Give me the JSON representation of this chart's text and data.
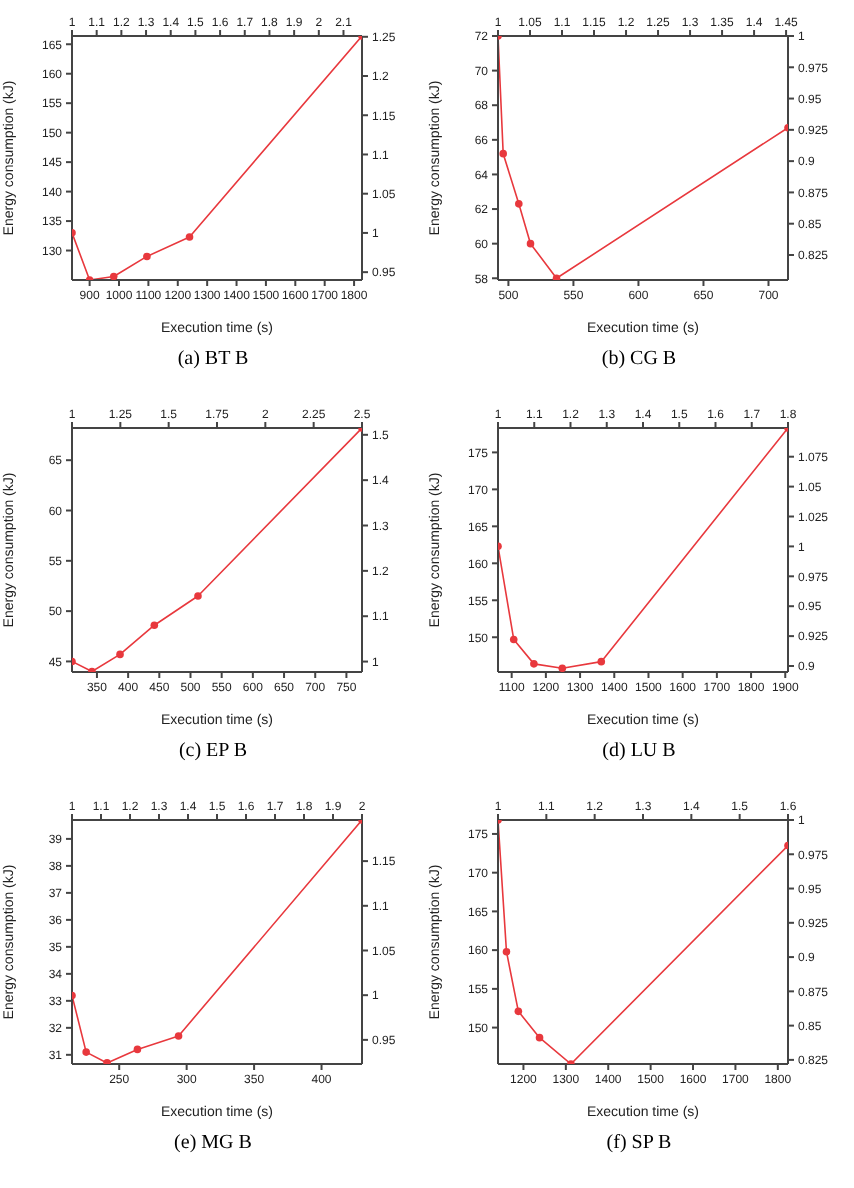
{
  "chart_data": [
    {
      "type": "line",
      "title": "(a) BT B",
      "xlabel": "Execution time (s)",
      "ylabel": "Energy consumption (kJ)",
      "marker": "circle",
      "x": [
        840,
        900,
        982,
        1095,
        1240,
        1827
      ],
      "series": [
        {
          "color": "#e8383d",
          "values": [
            133,
            125,
            125.6,
            129,
            132.3,
            166.4
          ]
        }
      ],
      "xlim": [
        840,
        1827
      ],
      "xticks": [
        900,
        1000,
        1100,
        1200,
        1300,
        1400,
        1500,
        1600,
        1700,
        1800
      ],
      "ylim": [
        125,
        166.4
      ],
      "yticks": [
        130,
        135,
        140,
        145,
        150,
        155,
        160,
        165
      ],
      "x2lim": [
        1,
        2.175
      ],
      "x2ticks": [
        1,
        1.1,
        1.2,
        1.3,
        1.4,
        1.5,
        1.6,
        1.7,
        1.8,
        1.9,
        2,
        2.1
      ],
      "y2lim": [
        0.94,
        1.251
      ],
      "y2ticks": [
        0.95,
        1,
        1.05,
        1.1,
        1.15,
        1.2,
        1.25
      ]
    },
    {
      "type": "line",
      "title": "(b) CG B",
      "xlabel": "Execution time (s)",
      "ylabel": "Energy consumption (kJ)",
      "marker": "circle",
      "x": [
        492,
        496,
        508,
        517,
        537,
        715
      ],
      "series": [
        {
          "color": "#e8383d",
          "values": [
            72,
            65.2,
            62.3,
            60,
            58,
            66.7
          ]
        }
      ],
      "xlim": [
        492,
        715
      ],
      "xticks": [
        500,
        550,
        600,
        650,
        700
      ],
      "ylim": [
        57.9,
        72
      ],
      "yticks": [
        58,
        60,
        62,
        64,
        66,
        68,
        70,
        72
      ],
      "x2lim": [
        1,
        1.453
      ],
      "x2ticks": [
        1,
        1.05,
        1.1,
        1.15,
        1.2,
        1.25,
        1.3,
        1.35,
        1.4,
        1.45
      ],
      "y2lim": [
        0.805,
        1
      ],
      "y2ticks": [
        0.825,
        0.85,
        0.875,
        0.9,
        0.925,
        0.95,
        0.975,
        1
      ]
    },
    {
      "type": "line",
      "title": "(c) EP B",
      "xlabel": "Execution time (s)",
      "ylabel": "Energy consumption (kJ)",
      "marker": "circle",
      "x": [
        310,
        342,
        387,
        442,
        512,
        775
      ],
      "series": [
        {
          "color": "#e8383d",
          "values": [
            45,
            44,
            45.7,
            48.6,
            51.5,
            68.2
          ]
        }
      ],
      "xlim": [
        310,
        775
      ],
      "xticks": [
        350,
        400,
        450,
        500,
        550,
        600,
        650,
        700,
        750
      ],
      "ylim": [
        43.95,
        68.2
      ],
      "yticks": [
        45,
        50,
        55,
        60,
        65
      ],
      "x2lim": [
        1,
        2.5
      ],
      "x2ticks": [
        1,
        1.25,
        1.5,
        1.75,
        2,
        2.25,
        2.5
      ],
      "y2lim": [
        0.977,
        1.515
      ],
      "y2ticks": [
        1,
        1.1,
        1.2,
        1.3,
        1.4,
        1.5
      ]
    },
    {
      "type": "line",
      "title": "(d) LU B",
      "xlabel": "Execution time (s)",
      "ylabel": "Energy consumption (kJ)",
      "marker": "circle",
      "x": [
        1060,
        1106,
        1165,
        1248,
        1362,
        1908
      ],
      "series": [
        {
          "color": "#e8383d",
          "values": [
            162.3,
            149.7,
            146.4,
            145.8,
            146.7,
            178.3
          ]
        }
      ],
      "xlim": [
        1060,
        1908
      ],
      "xticks": [
        1100,
        1200,
        1300,
        1400,
        1500,
        1600,
        1700,
        1800,
        1900
      ],
      "ylim": [
        145.3,
        178.3
      ],
      "yticks": [
        150,
        155,
        160,
        165,
        170,
        175
      ],
      "x2lim": [
        1,
        1.8
      ],
      "x2ticks": [
        1,
        1.1,
        1.2,
        1.3,
        1.4,
        1.5,
        1.6,
        1.7,
        1.8
      ],
      "y2lim": [
        0.895,
        1.099
      ],
      "y2ticks": [
        0.9,
        0.925,
        0.95,
        0.975,
        1,
        1.025,
        1.05,
        1.075
      ]
    },
    {
      "type": "line",
      "title": "(e) MG B",
      "xlabel": "Execution time (s)",
      "ylabel": "Energy consumption (kJ)",
      "marker": "circle",
      "x": [
        215,
        225.5,
        241,
        263.5,
        294,
        430
      ],
      "series": [
        {
          "color": "#e8383d",
          "values": [
            33.2,
            31.1,
            30.7,
            31.2,
            31.7,
            39.7
          ]
        }
      ],
      "xlim": [
        215,
        430
      ],
      "xticks": [
        250,
        300,
        350,
        400
      ],
      "ylim": [
        30.66,
        39.7
      ],
      "yticks": [
        31,
        32,
        33,
        34,
        35,
        36,
        37,
        38,
        39
      ],
      "x2lim": [
        1,
        2
      ],
      "x2ticks": [
        1,
        1.1,
        1.2,
        1.3,
        1.4,
        1.5,
        1.6,
        1.7,
        1.8,
        1.9,
        2
      ],
      "y2lim": [
        0.923,
        1.196
      ],
      "y2ticks": [
        0.95,
        1,
        1.05,
        1.1,
        1.15
      ]
    },
    {
      "type": "line",
      "title": "(f) SP B",
      "xlabel": "Execution time (s)",
      "ylabel": "Energy consumption (kJ)",
      "marker": "circle",
      "x": [
        1140,
        1160,
        1188,
        1238,
        1312,
        1824
      ],
      "series": [
        {
          "color": "#e8383d",
          "values": [
            176.8,
            159.8,
            152.1,
            148.7,
            145.3,
            173.5
          ]
        }
      ],
      "xlim": [
        1140,
        1824
      ],
      "xticks": [
        1200,
        1300,
        1400,
        1500,
        1600,
        1700,
        1800
      ],
      "ylim": [
        145.3,
        176.8
      ],
      "yticks": [
        150,
        155,
        160,
        165,
        170,
        175
      ],
      "x2lim": [
        1,
        1.6
      ],
      "x2ticks": [
        1,
        1.1,
        1.2,
        1.3,
        1.4,
        1.5,
        1.6
      ],
      "y2lim": [
        0.822,
        1
      ],
      "y2ticks": [
        0.825,
        0.85,
        0.875,
        0.9,
        0.925,
        0.95,
        0.975,
        1
      ]
    }
  ]
}
